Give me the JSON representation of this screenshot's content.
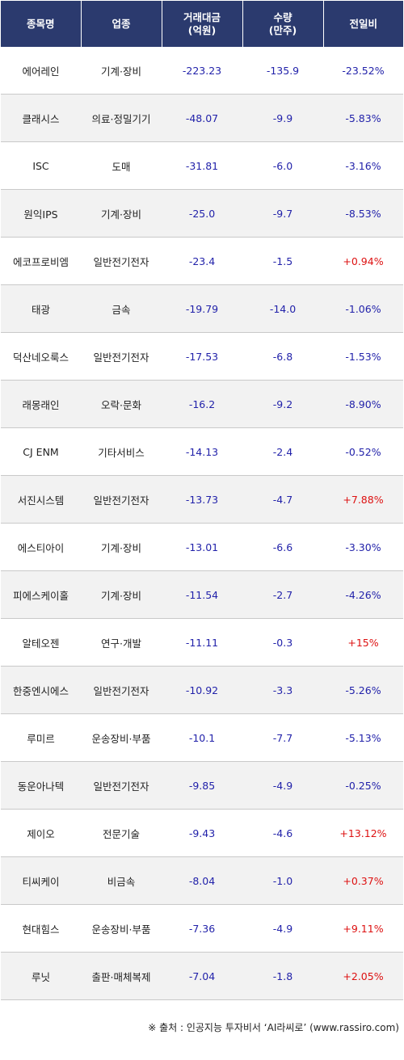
{
  "headers": [
    "종목명",
    "업종",
    "거래대금\n(억원)",
    "수량\n(만주)",
    "전일비"
  ],
  "colors": {
    "header_bg": "#2b3a6e",
    "negative": "#2222aa",
    "positive": "#dd1111",
    "band": "#f2f2f2"
  },
  "rows": [
    {
      "name": "에어레인",
      "sector": "기계·장비",
      "amount": "-223.23",
      "qty": "-135.9",
      "change": "-23.52%",
      "dir": "down"
    },
    {
      "name": "클래시스",
      "sector": "의료·정밀기기",
      "amount": "-48.07",
      "qty": "-9.9",
      "change": "-5.83%",
      "dir": "down"
    },
    {
      "name": "ISC",
      "sector": "도매",
      "amount": "-31.81",
      "qty": "-6.0",
      "change": "-3.16%",
      "dir": "down"
    },
    {
      "name": "원익IPS",
      "sector": "기계·장비",
      "amount": "-25.0",
      "qty": "-9.7",
      "change": "-8.53%",
      "dir": "down"
    },
    {
      "name": "에코프로비엠",
      "sector": "일반전기전자",
      "amount": "-23.4",
      "qty": "-1.5",
      "change": "+0.94%",
      "dir": "up"
    },
    {
      "name": "태광",
      "sector": "금속",
      "amount": "-19.79",
      "qty": "-14.0",
      "change": "-1.06%",
      "dir": "down"
    },
    {
      "name": "덕산네오룩스",
      "sector": "일반전기전자",
      "amount": "-17.53",
      "qty": "-6.8",
      "change": "-1.53%",
      "dir": "down"
    },
    {
      "name": "래몽래인",
      "sector": "오락·문화",
      "amount": "-16.2",
      "qty": "-9.2",
      "change": "-8.90%",
      "dir": "down"
    },
    {
      "name": "CJ ENM",
      "sector": "기타서비스",
      "amount": "-14.13",
      "qty": "-2.4",
      "change": "-0.52%",
      "dir": "down"
    },
    {
      "name": "서진시스템",
      "sector": "일반전기전자",
      "amount": "-13.73",
      "qty": "-4.7",
      "change": "+7.88%",
      "dir": "up"
    },
    {
      "name": "에스티아이",
      "sector": "기계·장비",
      "amount": "-13.01",
      "qty": "-6.6",
      "change": "-3.30%",
      "dir": "down"
    },
    {
      "name": "피에스케이홀",
      "sector": "기계·장비",
      "amount": "-11.54",
      "qty": "-2.7",
      "change": "-4.26%",
      "dir": "down"
    },
    {
      "name": "알테오젠",
      "sector": "연구·개발",
      "amount": "-11.11",
      "qty": "-0.3",
      "change": "+15%",
      "dir": "up"
    },
    {
      "name": "한중엔시에스",
      "sector": "일반전기전자",
      "amount": "-10.92",
      "qty": "-3.3",
      "change": "-5.26%",
      "dir": "down"
    },
    {
      "name": "루미르",
      "sector": "운송장비·부품",
      "amount": "-10.1",
      "qty": "-7.7",
      "change": "-5.13%",
      "dir": "down"
    },
    {
      "name": "동운아나텍",
      "sector": "일반전기전자",
      "amount": "-9.85",
      "qty": "-4.9",
      "change": "-0.25%",
      "dir": "down"
    },
    {
      "name": "제이오",
      "sector": "전문기술",
      "amount": "-9.43",
      "qty": "-4.6",
      "change": "+13.12%",
      "dir": "up"
    },
    {
      "name": "티씨케이",
      "sector": "비금속",
      "amount": "-8.04",
      "qty": "-1.0",
      "change": "+0.37%",
      "dir": "up"
    },
    {
      "name": "현대힘스",
      "sector": "운송장비·부품",
      "amount": "-7.36",
      "qty": "-4.9",
      "change": "+9.11%",
      "dir": "up"
    },
    {
      "name": "루닛",
      "sector": "출판·매체복제",
      "amount": "-7.04",
      "qty": "-1.8",
      "change": "+2.05%",
      "dir": "up"
    }
  ],
  "source": "※ 출처 : 인공지능 투자비서 ‘AI라씨로’ (www.rassiro.com)"
}
